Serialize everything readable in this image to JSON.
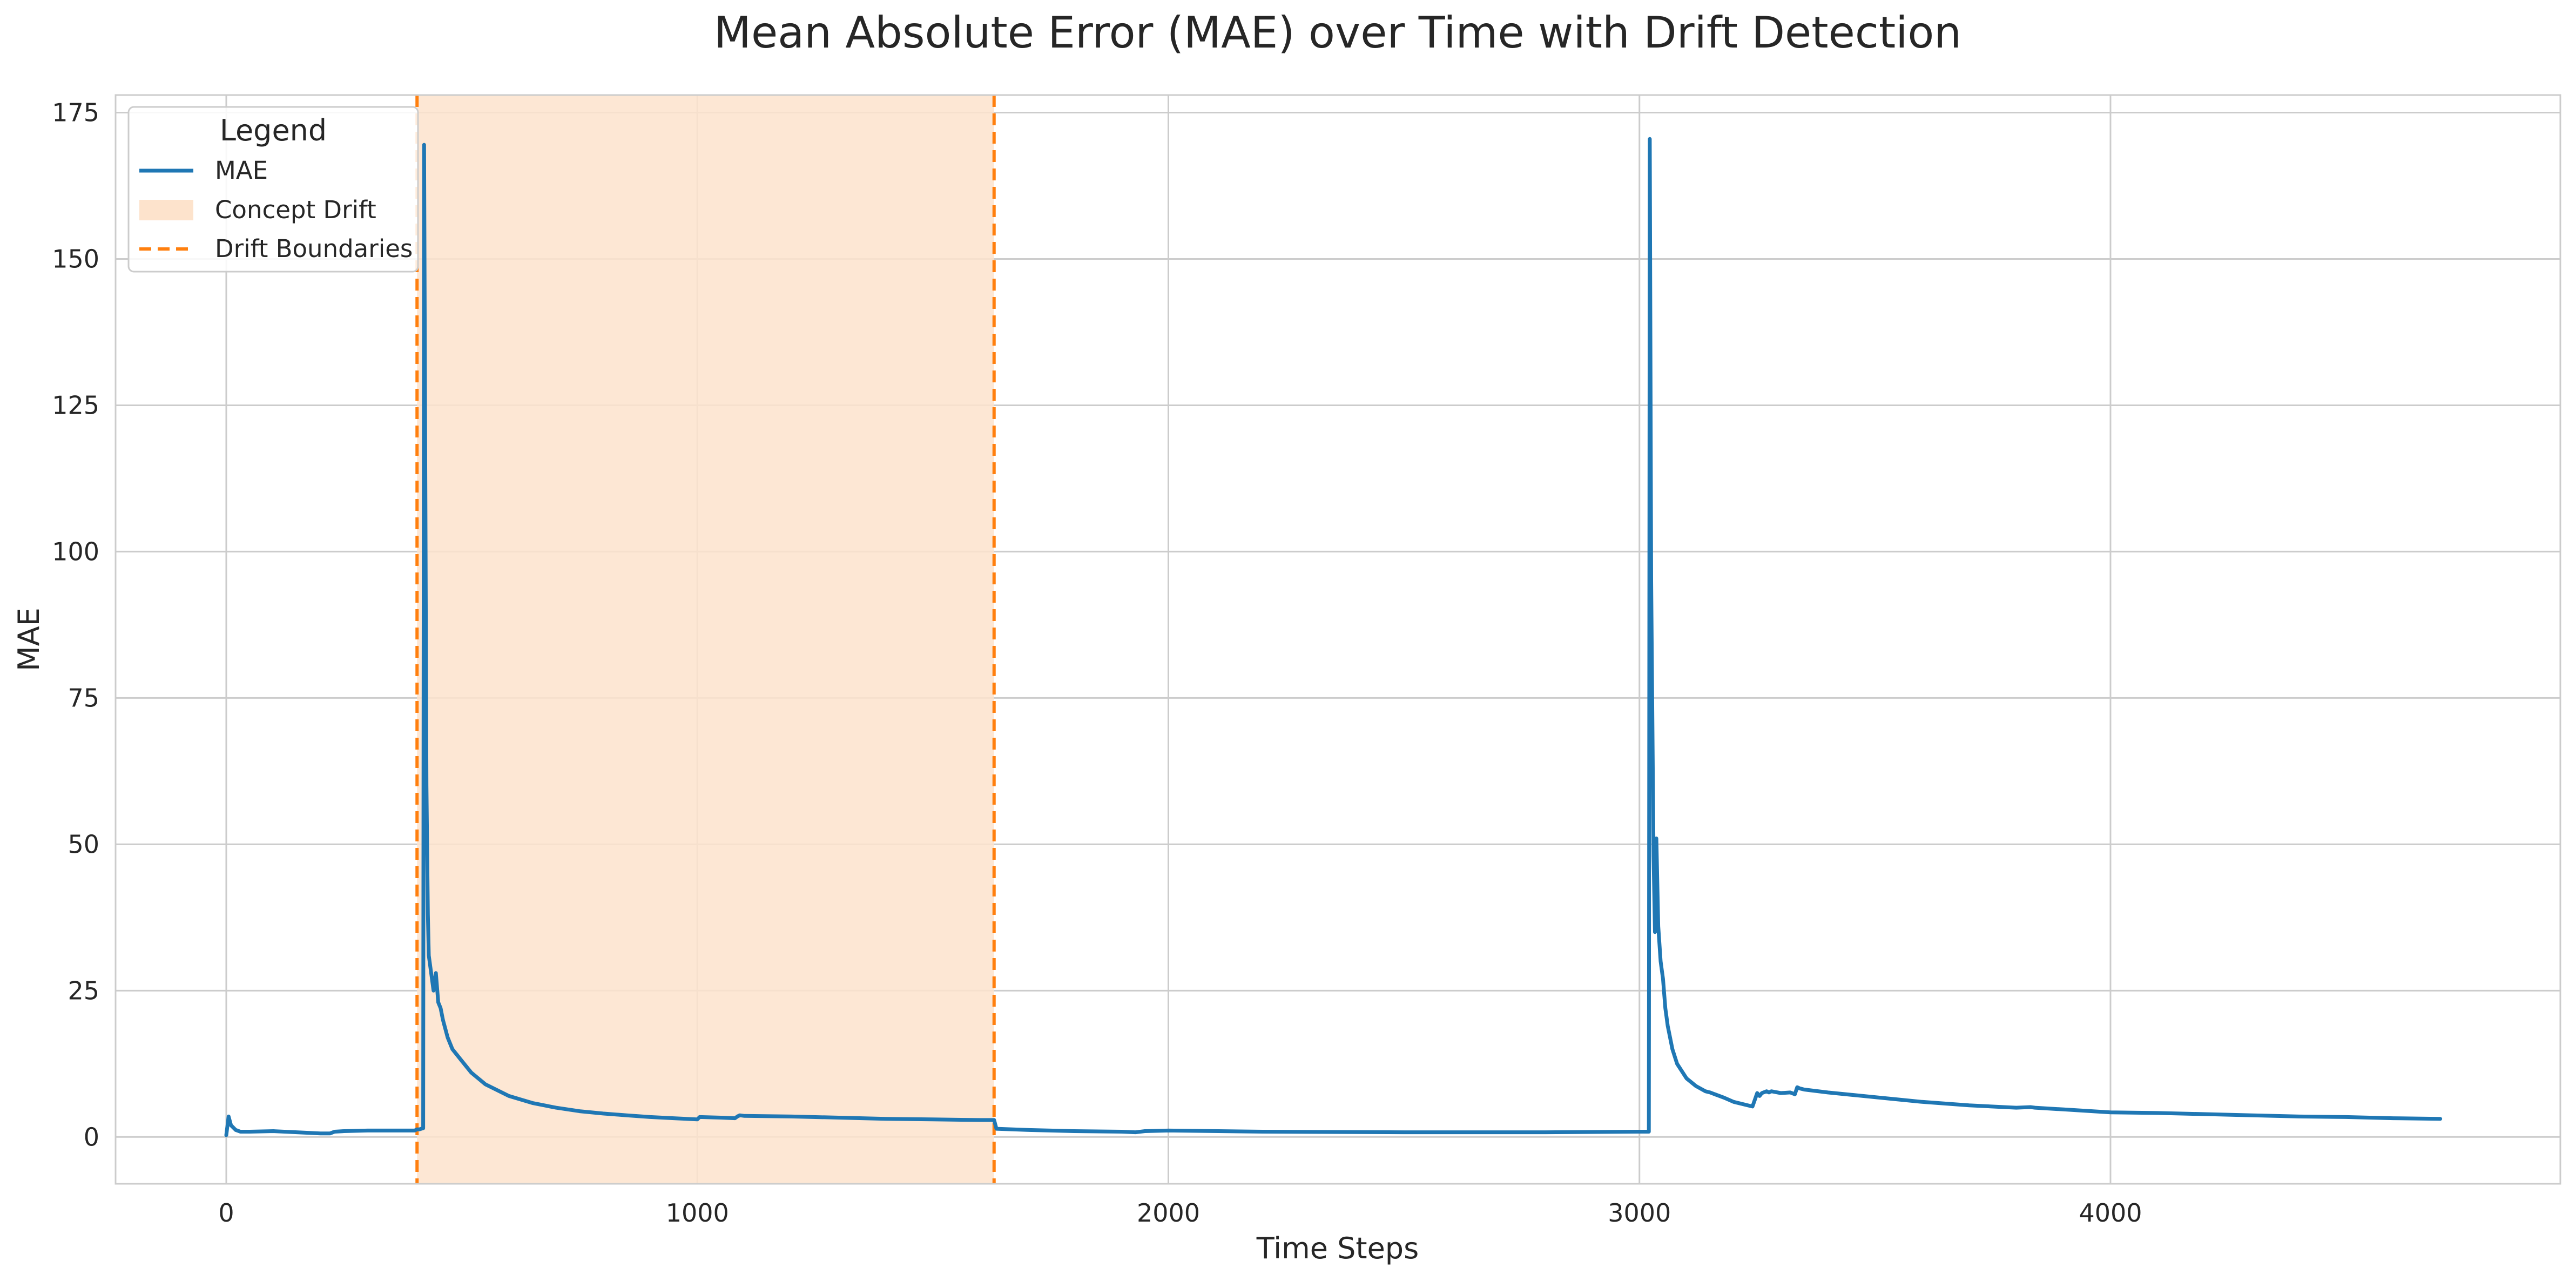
{
  "chart_data": {
    "type": "line",
    "title": "Mean Absolute Error (MAE) over Time with Drift Detection",
    "xlabel": "Time Steps",
    "ylabel": "MAE",
    "xlim": [
      -235,
      4955
    ],
    "ylim": [
      -8,
      178
    ],
    "x_ticks": [
      0,
      1000,
      2000,
      3000,
      4000
    ],
    "y_ticks": [
      0,
      25,
      50,
      75,
      100,
      125,
      150,
      175
    ],
    "x_tick_labels": [
      "0",
      "1000",
      "2000",
      "3000",
      "4000"
    ],
    "y_tick_labels": [
      "0",
      "25",
      "50",
      "75",
      "100",
      "125",
      "150",
      "175"
    ],
    "grid": true,
    "legend": {
      "title": "Legend",
      "placement": "top-left",
      "entries": [
        "MAE",
        "Concept Drift",
        "Drift Boundaries"
      ]
    },
    "colors": {
      "mae": "#1f77b4",
      "drift_fill": "#fde3cc",
      "drift_boundary": "#ff7f0e",
      "grid": "#cccccc"
    },
    "drift_region": [
      405,
      1630
    ],
    "drift_boundaries": [
      405,
      1630
    ],
    "series": [
      {
        "name": "MAE",
        "x": [
          0,
          5,
          10,
          20,
          30,
          50,
          100,
          150,
          200,
          220,
          230,
          250,
          300,
          350,
          400,
          405,
          410,
          418,
          420,
          425,
          428,
          430,
          435,
          440,
          445,
          450,
          455,
          460,
          470,
          480,
          500,
          520,
          550,
          600,
          650,
          700,
          750,
          800,
          850,
          900,
          950,
          1000,
          1005,
          1050,
          1080,
          1085,
          1090,
          1100,
          1200,
          1300,
          1400,
          1500,
          1600,
          1630,
          1635,
          1700,
          1800,
          1900,
          1930,
          1950,
          2000,
          2200,
          2500,
          2800,
          3000,
          3020,
          3022,
          3025,
          3030,
          3033,
          3036,
          3040,
          3045,
          3050,
          3055,
          3060,
          3070,
          3080,
          3100,
          3120,
          3140,
          3150,
          3160,
          3180,
          3200,
          3240,
          3250,
          3255,
          3260,
          3270,
          3275,
          3280,
          3300,
          3320,
          3330,
          3335,
          3340,
          3350,
          3400,
          3500,
          3600,
          3700,
          3800,
          3830,
          3840,
          3900,
          4000,
          4100,
          4200,
          4300,
          4400,
          4500,
          4600,
          4700
        ],
        "values": [
          0.3,
          3.5,
          2.0,
          1.2,
          0.9,
          0.9,
          1.0,
          0.8,
          0.6,
          0.6,
          0.9,
          1.0,
          1.1,
          1.1,
          1.1,
          1.3,
          1.3,
          1.5,
          169.5,
          60,
          38,
          31,
          28,
          25,
          28,
          23,
          22,
          20,
          17,
          15,
          13,
          11,
          9,
          7,
          5.8,
          5,
          4.4,
          4,
          3.7,
          3.4,
          3.2,
          3.0,
          3.4,
          3.3,
          3.2,
          3.5,
          3.7,
          3.6,
          3.5,
          3.3,
          3.1,
          3.0,
          2.9,
          2.9,
          1.4,
          1.2,
          1.0,
          0.9,
          0.8,
          1.0,
          1.1,
          0.9,
          0.8,
          0.8,
          0.9,
          0.9,
          170.5,
          95,
          48,
          35,
          51,
          36,
          30,
          27,
          22,
          19,
          15,
          12.5,
          10,
          8.7,
          7.8,
          7.6,
          7.3,
          6.7,
          6.0,
          5.2,
          7.5,
          7.0,
          7.5,
          7.8,
          7.6,
          7.8,
          7.5,
          7.6,
          7.3,
          8.5,
          8.3,
          8.1,
          7.6,
          6.8,
          6.0,
          5.4,
          5.0,
          5.1,
          5.0,
          4.7,
          4.2,
          4.1,
          3.9,
          3.7,
          3.5,
          3.4,
          3.2,
          3.1
        ]
      }
    ]
  }
}
